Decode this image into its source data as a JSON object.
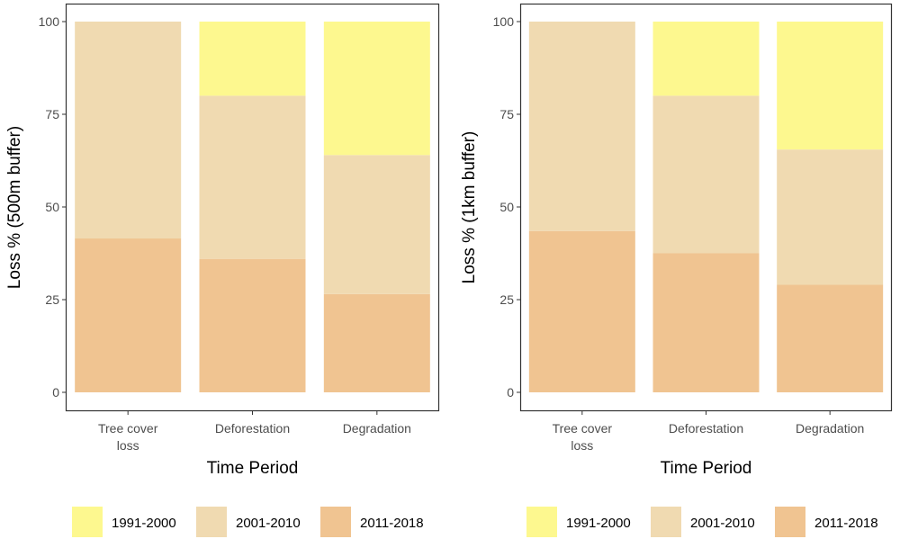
{
  "colors": {
    "1991-2000": "#fdf88f",
    "2001-2010": "#f0dab1",
    "2011-2018": "#f0c491"
  },
  "chart_data": [
    {
      "type": "bar",
      "stacked": true,
      "categories": [
        [
          "Tree cover",
          "loss"
        ],
        [
          "Deforestation"
        ],
        [
          "Degradation"
        ]
      ],
      "series": [
        {
          "name": "2011-2018",
          "values": [
            41.5,
            36,
            26.5
          ]
        },
        {
          "name": "2001-2010",
          "values": [
            58.5,
            44,
            37.5
          ]
        },
        {
          "name": "1991-2000",
          "values": [
            0,
            20,
            36
          ]
        }
      ],
      "xlabel": "Time Period",
      "ylabel": "Loss % (500m buffer)",
      "ylim": [
        0,
        100
      ],
      "yticks": [
        0,
        25,
        50,
        75,
        100
      ],
      "grid": false,
      "legend_position": "bottom"
    },
    {
      "type": "bar",
      "stacked": true,
      "categories": [
        [
          "Tree cover",
          "loss"
        ],
        [
          "Deforestation"
        ],
        [
          "Degradation"
        ]
      ],
      "series": [
        {
          "name": "2011-2018",
          "values": [
            43.5,
            37.5,
            29
          ]
        },
        {
          "name": "2001-2010",
          "values": [
            56.5,
            42.5,
            36.5
          ]
        },
        {
          "name": "1991-2000",
          "values": [
            0,
            20,
            34.5
          ]
        }
      ],
      "xlabel": "Time Period",
      "ylabel": "Loss % (1km buffer)",
      "ylim": [
        0,
        100
      ],
      "yticks": [
        0,
        25,
        50,
        75,
        100
      ],
      "grid": false,
      "legend_position": "bottom"
    }
  ],
  "legend": {
    "entries": [
      "1991-2000",
      "2001-2010",
      "2011-2018"
    ]
  }
}
